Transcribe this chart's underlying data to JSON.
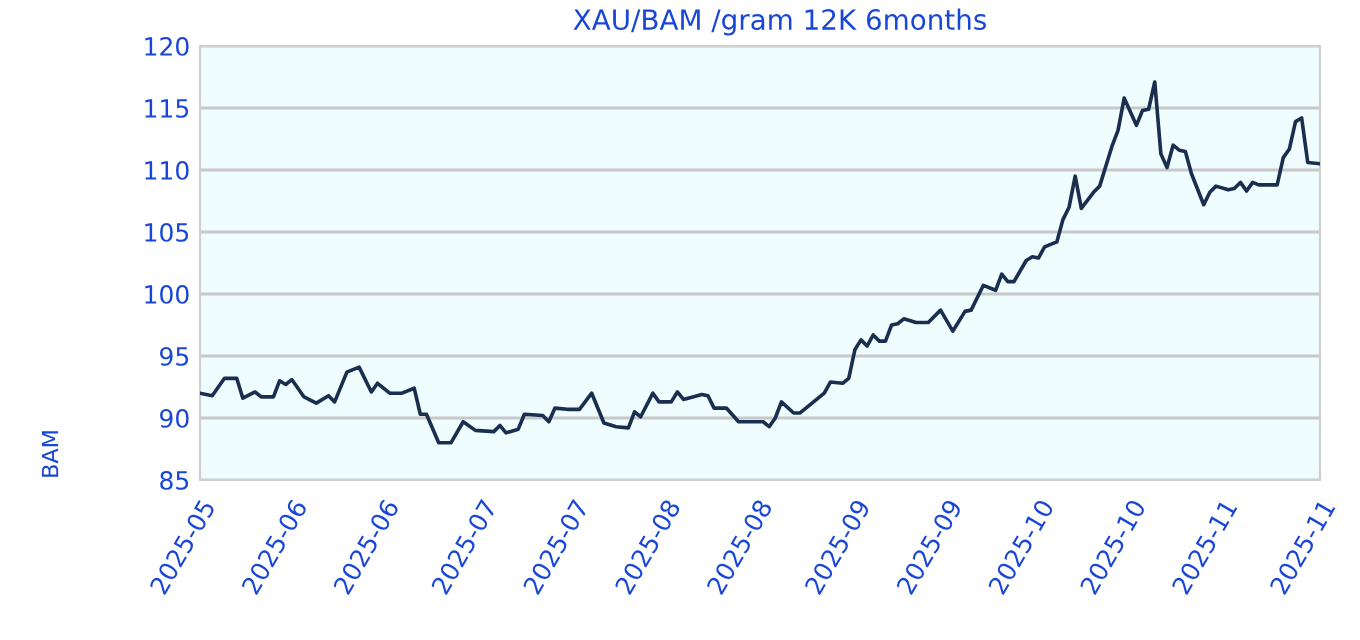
{
  "chart_data": {
    "type": "line",
    "title": "XAU/BAM /gram 12K 6months",
    "ylabel": "BAM",
    "x": [
      "2025-05-18",
      "2025-05-20",
      "2025-05-22",
      "2025-05-24",
      "2025-05-25",
      "2025-05-27",
      "2025-05-28",
      "2025-05-30",
      "2025-05-31",
      "2025-06-01",
      "2025-06-02",
      "2025-06-04",
      "2025-06-06",
      "2025-06-08",
      "2025-06-09",
      "2025-06-11",
      "2025-06-13",
      "2025-06-15",
      "2025-06-16",
      "2025-06-18",
      "2025-06-20",
      "2025-06-22",
      "2025-06-23",
      "2025-06-24",
      "2025-06-26",
      "2025-06-28",
      "2025-06-30",
      "2025-07-02",
      "2025-07-05",
      "2025-07-06",
      "2025-07-07",
      "2025-07-09",
      "2025-07-10",
      "2025-07-13",
      "2025-07-14",
      "2025-07-15",
      "2025-07-17",
      "2025-07-19",
      "2025-07-21",
      "2025-07-23",
      "2025-07-25",
      "2025-07-27",
      "2025-07-28",
      "2025-07-29",
      "2025-07-31",
      "2025-08-01",
      "2025-08-03",
      "2025-08-04",
      "2025-08-05",
      "2025-08-08",
      "2025-08-09",
      "2025-08-10",
      "2025-08-12",
      "2025-08-14",
      "2025-08-18",
      "2025-08-19",
      "2025-08-20",
      "2025-08-21",
      "2025-08-23",
      "2025-08-24",
      "2025-08-26",
      "2025-08-28",
      "2025-08-29",
      "2025-08-31",
      "2025-09-01",
      "2025-09-02",
      "2025-09-03",
      "2025-09-04",
      "2025-09-05",
      "2025-09-06",
      "2025-09-07",
      "2025-09-08",
      "2025-09-09",
      "2025-09-10",
      "2025-09-12",
      "2025-09-14",
      "2025-09-16",
      "2025-09-18",
      "2025-09-20",
      "2025-09-21",
      "2025-09-23",
      "2025-09-25",
      "2025-09-26",
      "2025-09-27",
      "2025-09-28",
      "2025-09-30",
      "2025-10-01",
      "2025-10-02",
      "2025-10-03",
      "2025-10-05",
      "2025-10-06",
      "2025-10-07",
      "2025-10-08",
      "2025-10-09",
      "2025-10-11",
      "2025-10-12",
      "2025-10-14",
      "2025-10-15",
      "2025-10-16",
      "2025-10-18",
      "2025-10-19",
      "2025-10-20",
      "2025-10-21",
      "2025-10-22",
      "2025-10-23",
      "2025-10-24",
      "2025-10-25",
      "2025-10-26",
      "2025-10-27",
      "2025-10-29",
      "2025-10-30",
      "2025-10-31",
      "2025-11-02",
      "2025-11-03",
      "2025-11-04",
      "2025-11-05",
      "2025-11-06",
      "2025-11-07",
      "2025-11-10",
      "2025-11-11",
      "2025-11-12",
      "2025-11-13",
      "2025-11-14",
      "2025-11-15",
      "2025-11-17"
    ],
    "series": [
      {
        "color": "#1a2e50",
        "values": [
          92.0,
          91.8,
          93.2,
          93.2,
          91.6,
          92.1,
          91.7,
          91.7,
          93.0,
          92.7,
          93.1,
          91.7,
          91.2,
          91.8,
          91.3,
          93.7,
          94.1,
          92.1,
          92.8,
          92.0,
          92.0,
          92.4,
          90.3,
          90.3,
          88.0,
          88.0,
          89.7,
          89.0,
          88.9,
          89.4,
          88.8,
          89.1,
          90.3,
          90.2,
          89.7,
          90.8,
          90.7,
          90.7,
          92.0,
          89.6,
          89.3,
          89.2,
          90.5,
          90.1,
          92.0,
          91.3,
          91.3,
          92.1,
          91.5,
          91.9,
          91.8,
          90.8,
          90.8,
          89.7,
          89.7,
          89.3,
          90.0,
          91.3,
          90.4,
          90.4,
          91.2,
          92.0,
          92.9,
          92.8,
          93.2,
          95.5,
          96.3,
          95.8,
          96.7,
          96.2,
          96.2,
          97.5,
          97.6,
          98.0,
          97.7,
          97.7,
          98.7,
          97.0,
          98.6,
          98.7,
          100.7,
          100.3,
          101.6,
          101.0,
          101.0,
          102.7,
          103.0,
          102.9,
          103.8,
          104.2,
          106.0,
          107.0,
          109.5,
          106.9,
          108.2,
          108.7,
          111.9,
          113.2,
          115.8,
          113.6,
          114.8,
          114.9,
          117.1,
          111.3,
          110.2,
          112.0,
          111.6,
          111.5,
          109.7,
          107.2,
          108.2,
          108.7,
          108.4,
          108.5,
          109.0,
          108.3,
          109.0,
          108.8,
          108.8,
          111.0,
          111.7,
          113.9,
          114.2,
          110.6,
          110.5
        ]
      }
    ],
    "xlim": [
      "2025-05-18",
      "2025-11-17"
    ],
    "xticks": [
      {
        "value": "2025-05-18",
        "label": "2025-05"
      },
      {
        "value": "2025-06-02",
        "label": "2025-06"
      },
      {
        "value": "2025-06-17",
        "label": "2025-06"
      },
      {
        "value": "2025-07-03",
        "label": "2025-07"
      },
      {
        "value": "2025-07-18",
        "label": "2025-07"
      },
      {
        "value": "2025-08-02",
        "label": "2025-08"
      },
      {
        "value": "2025-08-17",
        "label": "2025-08"
      },
      {
        "value": "2025-09-02",
        "label": "2025-09"
      },
      {
        "value": "2025-09-17",
        "label": "2025-09"
      },
      {
        "value": "2025-10-02",
        "label": "2025-10"
      },
      {
        "value": "2025-10-17",
        "label": "2025-10"
      },
      {
        "value": "2025-11-01",
        "label": "2025-11"
      },
      {
        "value": "2025-11-17",
        "label": "2025-11"
      }
    ],
    "ylim": [
      85,
      120
    ],
    "yticks": [
      85,
      90,
      95,
      100,
      105,
      110,
      115,
      120
    ],
    "grid": "y",
    "legend": false,
    "marker": "none",
    "line_style": "solid"
  }
}
